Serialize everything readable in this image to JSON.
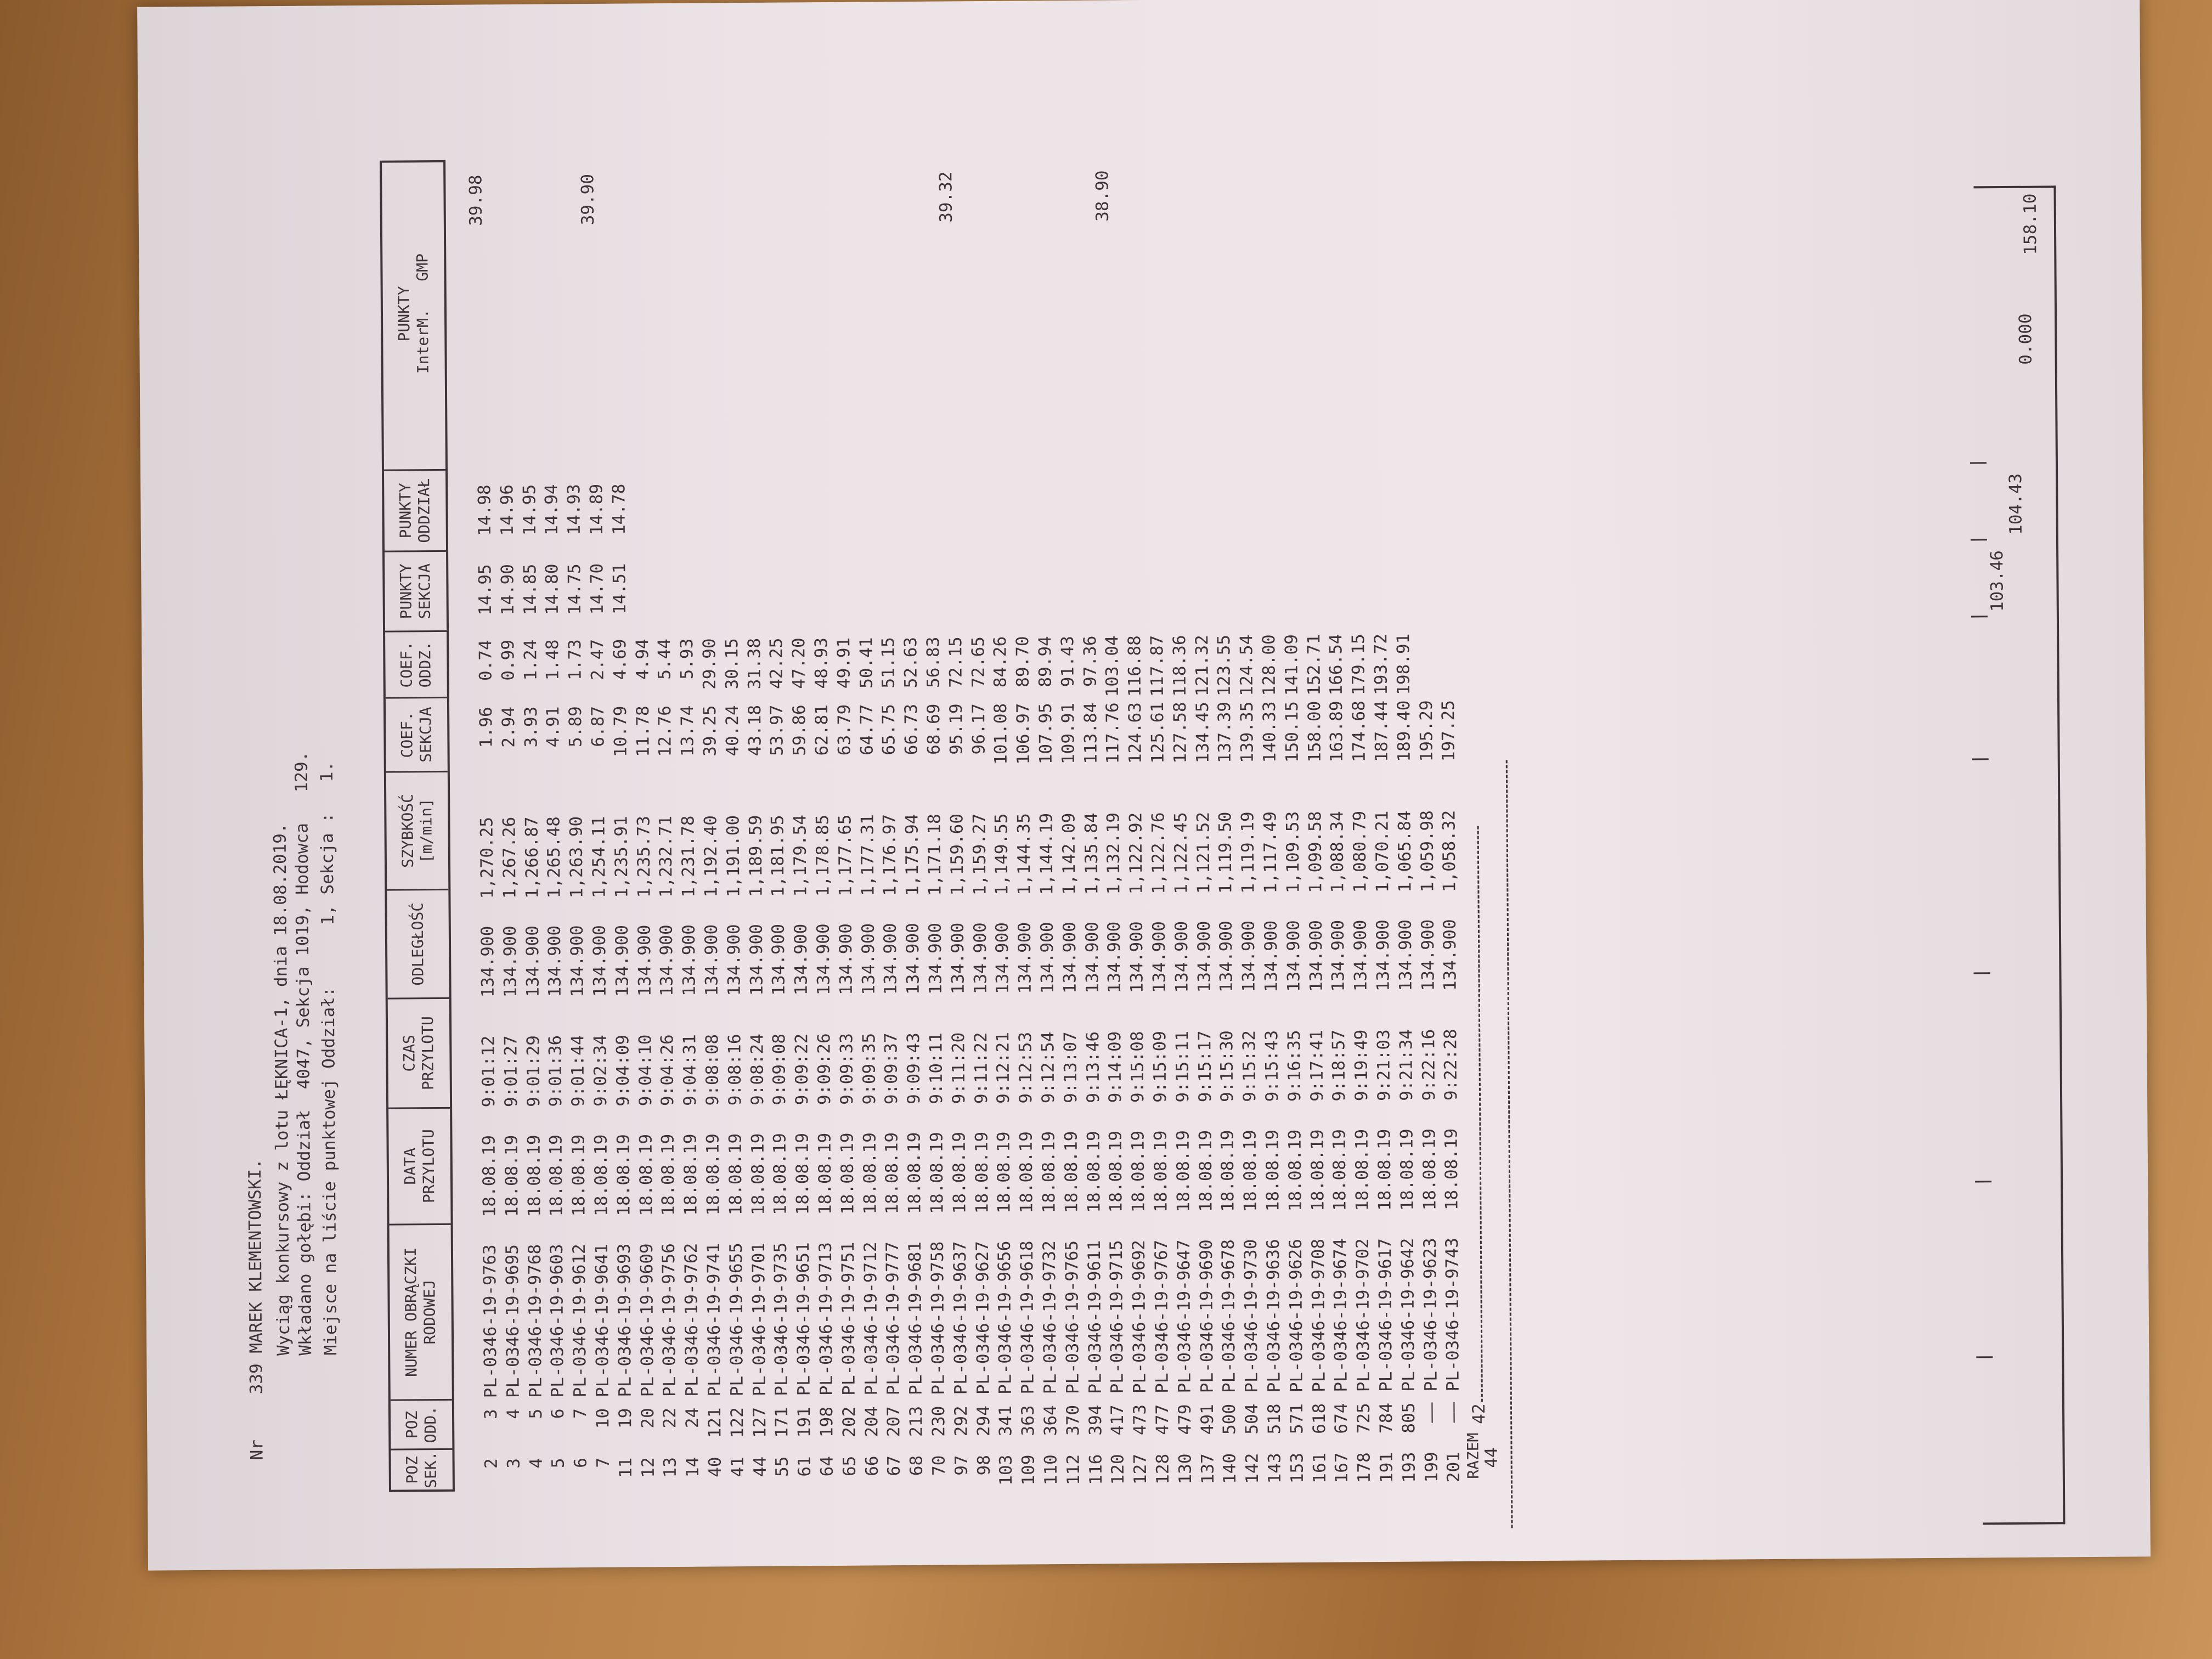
{
  "header": {
    "line1_nr": "Nr",
    "line1": "339 MAREK KLEMENTOWSKI.",
    "line2": "Wyciąg konkursowy z lotu ŁĘKNICA-1, dnia 18.08.2019.",
    "line3": "Wkładano gołębi: Oddział  4047, Sekcja 1019, Hodowca   129.",
    "line4": "Miejsce na liście punktowej Oddział:      1, Sekcja :   1."
  },
  "columns": [
    [
      "POZ",
      "SEK."
    ],
    [
      "POZ",
      "ODD."
    ],
    [
      "NUMER OBRĄCZKI",
      "RODOWEJ"
    ],
    [
      "DATA",
      "PRZYLOTU"
    ],
    [
      "CZAS",
      "PRZYLOTU"
    ],
    [
      "ODLEGŁOŚĆ",
      ""
    ],
    [
      "SZYBKOŚĆ",
      "[m/min]"
    ],
    [
      "COEF.",
      "SEKCJA"
    ],
    [
      "COEF.",
      "ODDZ."
    ],
    [
      "PUNKTY",
      "SEKCJA"
    ],
    [
      "PUNKTY",
      "ODDZIAŁ"
    ],
    [
      "PUNKTY",
      "InterM.   GMP"
    ]
  ],
  "rows": [
    [
      "2",
      "3",
      "PL-0346-19-9763",
      "18.08.19",
      "9:01:12",
      "134.900",
      "1,270.25",
      "1.96",
      "0.74",
      "14.95",
      "14.98",
      "39.98"
    ],
    [
      "3",
      "4",
      "PL-0346-19-9695",
      "18.08.19",
      "9:01:27",
      "134.900",
      "1,267.26",
      "2.94",
      "0.99",
      "14.90",
      "14.96",
      ""
    ],
    [
      "4",
      "5",
      "PL-0346-19-9768",
      "18.08.19",
      "9:01:29",
      "134.900",
      "1,266.87",
      "3.93",
      "1.24",
      "14.85",
      "14.95",
      ""
    ],
    [
      "5",
      "6",
      "PL-0346-19-9603",
      "18.08.19",
      "9:01:36",
      "134.900",
      "1,265.48",
      "4.91",
      "1.48",
      "14.80",
      "14.94",
      ""
    ],
    [
      "6",
      "7",
      "PL-0346-19-9612",
      "18.08.19",
      "9:01:44",
      "134.900",
      "1,263.90",
      "5.89",
      "1.73",
      "14.75",
      "14.93",
      ""
    ],
    [
      "7",
      "10",
      "PL-0346-19-9641",
      "18.08.19",
      "9:02:34",
      "134.900",
      "1,254.11",
      "6.87",
      "2.47",
      "14.70",
      "14.89",
      "39.90"
    ],
    [
      "11",
      "19",
      "PL-0346-19-9693",
      "18.08.19",
      "9:04:09",
      "134.900",
      "1,235.91",
      "10.79",
      "4.69",
      "14.51",
      "14.78",
      ""
    ],
    [
      "12",
      "20",
      "PL-0346-19-9609",
      "18.08.19",
      "9:04:10",
      "134.900",
      "1,235.73",
      "11.78",
      "4.94",
      "",
      "",
      ""
    ],
    [
      "13",
      "22",
      "PL-0346-19-9756",
      "18.08.19",
      "9:04:26",
      "134.900",
      "1,232.71",
      "12.76",
      "5.44",
      "",
      "",
      ""
    ],
    [
      "14",
      "24",
      "PL-0346-19-9762",
      "18.08.19",
      "9:04:31",
      "134.900",
      "1,231.78",
      "13.74",
      "5.93",
      "",
      "",
      ""
    ],
    [
      "40",
      "121",
      "PL-0346-19-9741",
      "18.08.19",
      "9:08:08",
      "134.900",
      "1,192.40",
      "39.25",
      "29.90",
      "",
      "",
      ""
    ],
    [
      "41",
      "122",
      "PL-0346-19-9655",
      "18.08.19",
      "9:08:16",
      "134.900",
      "1,191.00",
      "40.24",
      "30.15",
      "",
      "",
      ""
    ],
    [
      "44",
      "127",
      "PL-0346-19-9701",
      "18.08.19",
      "9:08:24",
      "134.900",
      "1,189.59",
      "43.18",
      "31.38",
      "",
      "",
      ""
    ],
    [
      "55",
      "171",
      "PL-0346-19-9735",
      "18.08.19",
      "9:09:08",
      "134.900",
      "1,181.95",
      "53.97",
      "42.25",
      "",
      "",
      ""
    ],
    [
      "61",
      "191",
      "PL-0346-19-9651",
      "18.08.19",
      "9:09:22",
      "134.900",
      "1,179.54",
      "59.86",
      "47.20",
      "",
      "",
      ""
    ],
    [
      "64",
      "198",
      "PL-0346-19-9713",
      "18.08.19",
      "9:09:26",
      "134.900",
      "1,178.85",
      "62.81",
      "48.93",
      "",
      "",
      ""
    ],
    [
      "65",
      "202",
      "PL-0346-19-9751",
      "18.08.19",
      "9:09:33",
      "134.900",
      "1,177.65",
      "63.79",
      "49.91",
      "",
      "",
      ""
    ],
    [
      "66",
      "204",
      "PL-0346-19-9712",
      "18.08.19",
      "9:09:35",
      "134.900",
      "1,177.31",
      "64.77",
      "50.41",
      "",
      "",
      ""
    ],
    [
      "67",
      "207",
      "PL-0346-19-9777",
      "18.08.19",
      "9:09:37",
      "134.900",
      "1,176.97",
      "65.75",
      "51.15",
      "",
      "",
      ""
    ],
    [
      "68",
      "213",
      "PL-0346-19-9681",
      "18.08.19",
      "9:09:43",
      "134.900",
      "1,175.94",
      "66.73",
      "52.63",
      "",
      "",
      ""
    ],
    [
      "70",
      "230",
      "PL-0346-19-9758",
      "18.08.19",
      "9:10:11",
      "134.900",
      "1,171.18",
      "68.69",
      "56.83",
      "",
      "",
      ""
    ],
    [
      "97",
      "292",
      "PL-0346-19-9637",
      "18.08.19",
      "9:11:20",
      "134.900",
      "1,159.60",
      "95.19",
      "72.15",
      "",
      "",
      "39.32"
    ],
    [
      "98",
      "294",
      "PL-0346-19-9627",
      "18.08.19",
      "9:11:22",
      "134.900",
      "1,159.27",
      "96.17",
      "72.65",
      "",
      "",
      ""
    ],
    [
      "103",
      "341",
      "PL-0346-19-9656",
      "18.08.19",
      "9:12:21",
      "134.900",
      "1,149.55",
      "101.08",
      "84.26",
      "",
      "",
      ""
    ],
    [
      "109",
      "363",
      "PL-0346-19-9618",
      "18.08.19",
      "9:12:53",
      "134.900",
      "1,144.35",
      "106.97",
      "89.70",
      "",
      "",
      ""
    ],
    [
      "110",
      "364",
      "PL-0346-19-9732",
      "18.08.19",
      "9:12:54",
      "134.900",
      "1,144.19",
      "107.95",
      "89.94",
      "",
      "",
      ""
    ],
    [
      "112",
      "370",
      "PL-0346-19-9765",
      "18.08.19",
      "9:13:07",
      "134.900",
      "1,142.09",
      "109.91",
      "91.43",
      "",
      "",
      ""
    ],
    [
      "116",
      "394",
      "PL-0346-19-9611",
      "18.08.19",
      "9:13:46",
      "134.900",
      "1,135.84",
      "113.84",
      "97.36",
      "",
      "",
      ""
    ],
    [
      "120",
      "417",
      "PL-0346-19-9715",
      "18.08.19",
      "9:14:09",
      "134.900",
      "1,132.19",
      "117.76",
      "103.04",
      "",
      "",
      "38.90"
    ],
    [
      "127",
      "473",
      "PL-0346-19-9692",
      "18.08.19",
      "9:15:08",
      "134.900",
      "1,122.92",
      "124.63",
      "116.88",
      "",
      "",
      ""
    ],
    [
      "128",
      "477",
      "PL-0346-19-9767",
      "18.08.19",
      "9:15:09",
      "134.900",
      "1,122.76",
      "125.61",
      "117.87",
      "",
      "",
      ""
    ],
    [
      "130",
      "479",
      "PL-0346-19-9647",
      "18.08.19",
      "9:15:11",
      "134.900",
      "1,122.45",
      "127.58",
      "118.36",
      "",
      "",
      ""
    ],
    [
      "137",
      "491",
      "PL-0346-19-9690",
      "18.08.19",
      "9:15:17",
      "134.900",
      "1,121.52",
      "134.45",
      "121.32",
      "",
      "",
      ""
    ],
    [
      "140",
      "500",
      "PL-0346-19-9678",
      "18.08.19",
      "9:15:30",
      "134.900",
      "1,119.50",
      "137.39",
      "123.55",
      "",
      "",
      ""
    ],
    [
      "142",
      "504",
      "PL-0346-19-9730",
      "18.08.19",
      "9:15:32",
      "134.900",
      "1,119.19",
      "139.35",
      "124.54",
      "",
      "",
      ""
    ],
    [
      "143",
      "518",
      "PL-0346-19-9636",
      "18.08.19",
      "9:15:43",
      "134.900",
      "1,117.49",
      "140.33",
      "128.00",
      "",
      "",
      ""
    ],
    [
      "153",
      "571",
      "PL-0346-19-9626",
      "18.08.19",
      "9:16:35",
      "134.900",
      "1,109.53",
      "150.15",
      "141.09",
      "",
      "",
      ""
    ],
    [
      "161",
      "618",
      "PL-0346-19-9708",
      "18.08.19",
      "9:17:41",
      "134.900",
      "1,099.58",
      "158.00",
      "152.71",
      "",
      "",
      ""
    ],
    [
      "167",
      "674",
      "PL-0346-19-9674",
      "18.08.19",
      "9:18:57",
      "134.900",
      "1,088.34",
      "163.89",
      "166.54",
      "",
      "",
      ""
    ],
    [
      "178",
      "725",
      "PL-0346-19-9702",
      "18.08.19",
      "9:19:49",
      "134.900",
      "1,080.79",
      "174.68",
      "179.15",
      "",
      "",
      ""
    ],
    [
      "191",
      "784",
      "PL-0346-19-9617",
      "18.08.19",
      "9:21:03",
      "134.900",
      "1,070.21",
      "187.44",
      "193.72",
      "",
      "",
      ""
    ],
    [
      "193",
      "805",
      "PL-0346-19-9642",
      "18.08.19",
      "9:21:34",
      "134.900",
      "1,065.84",
      "189.40",
      "198.91",
      "",
      "",
      ""
    ],
    [
      "199",
      "——",
      "PL-0346-19-9623",
      "18.08.19",
      "9:22:16",
      "134.900",
      "1,059.98",
      "195.29",
      "",
      "",
      "",
      ""
    ],
    [
      "201",
      "——",
      "PL-0346-19-9743",
      "18.08.19",
      "9:22:28",
      "134.900",
      "1,058.32",
      "197.25",
      "",
      "",
      "",
      ""
    ]
  ],
  "footer": {
    "razem_label": "RAZEM",
    "count_sek": "44",
    "count_odd": "42"
  },
  "totals": {
    "punkty_sekcja": "103.46",
    "punkty_oddzial": "104.43",
    "punkty_interm": "0.000",
    "punkty_gmp": "158.10"
  }
}
